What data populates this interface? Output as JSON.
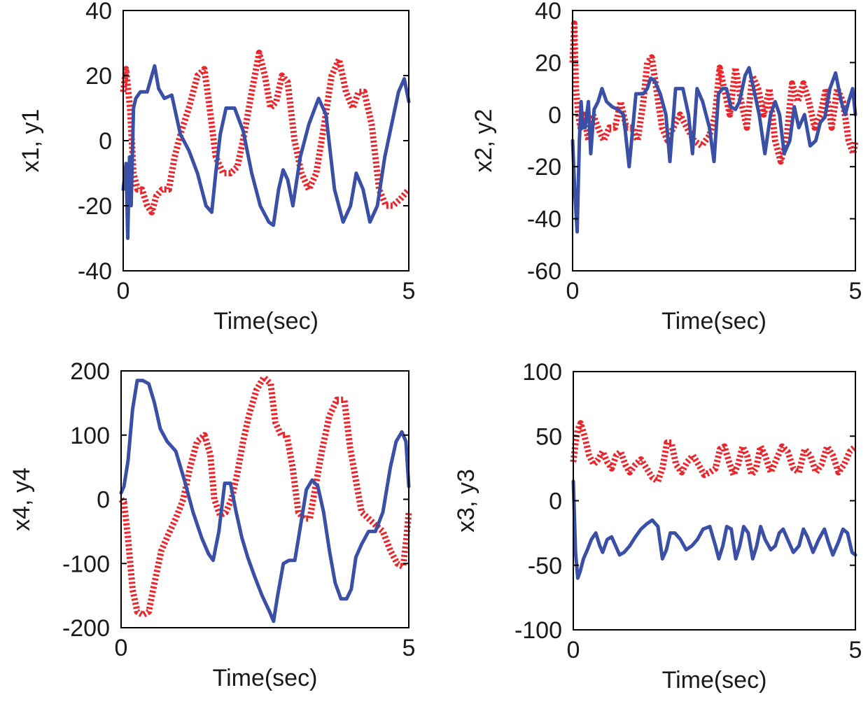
{
  "colors": {
    "blue": "#3a50a6",
    "red": "#e8262b",
    "axis": "#000000"
  },
  "chart_data": [
    {
      "id": "x1y1",
      "type": "line",
      "title": "",
      "xlabel": "Time(sec)",
      "ylabel": "x1, y1",
      "xlim": [
        0,
        5
      ],
      "ylim": [
        -40,
        40
      ],
      "xticks": [
        0,
        5
      ],
      "yticks": [
        -40,
        -20,
        0,
        20,
        40
      ],
      "series": [
        {
          "name": "x1",
          "color": "blue",
          "style": "solid",
          "x": [
            0,
            0.05,
            0.08,
            0.11,
            0.14,
            0.18,
            0.22,
            0.3,
            0.42,
            0.55,
            0.62,
            0.72,
            0.85,
            1.0,
            1.15,
            1.3,
            1.45,
            1.55,
            1.62,
            1.7,
            1.8,
            1.95,
            2.1,
            2.25,
            2.4,
            2.55,
            2.63,
            2.72,
            2.8,
            2.88,
            2.97,
            3.1,
            3.25,
            3.42,
            3.55,
            3.7,
            3.85,
            3.98,
            4.08,
            4.2,
            4.32,
            4.45,
            4.58,
            4.7,
            4.82,
            4.92,
            5.0
          ],
          "y": [
            -15,
            -7,
            -30,
            -5,
            -20,
            10,
            13,
            15,
            15,
            23,
            16,
            13,
            14,
            2,
            -3,
            -10,
            -20,
            -22,
            -10,
            2,
            10,
            10,
            3,
            -10,
            -20,
            -25,
            -26,
            -15,
            -9,
            -12,
            -20,
            -5,
            5,
            13,
            8,
            -15,
            -25,
            -20,
            -10,
            -15,
            -25,
            -20,
            -5,
            5,
            15,
            19,
            12
          ]
        },
        {
          "name": "y1",
          "color": "red",
          "style": "dotted",
          "x": [
            0,
            0.05,
            0.12,
            0.18,
            0.25,
            0.33,
            0.42,
            0.5,
            0.58,
            0.68,
            0.8,
            0.9,
            1.02,
            1.15,
            1.3,
            1.42,
            1.5,
            1.62,
            1.75,
            1.88,
            2.0,
            2.12,
            2.25,
            2.38,
            2.48,
            2.58,
            2.68,
            2.78,
            2.88,
            3.0,
            3.12,
            3.25,
            3.38,
            3.52,
            3.65,
            3.78,
            3.9,
            4.02,
            4.12,
            4.22,
            4.35,
            4.48,
            4.6,
            4.72,
            4.85,
            5.0
          ],
          "y": [
            15,
            22,
            10,
            -10,
            -15,
            -15,
            -20,
            -22,
            -17,
            -15,
            -15,
            -5,
            3,
            10,
            20,
            22,
            12,
            -5,
            -10,
            -10,
            -8,
            2,
            15,
            27,
            20,
            10,
            12,
            20,
            18,
            0,
            -10,
            -15,
            -10,
            5,
            20,
            25,
            15,
            10,
            15,
            15,
            5,
            -15,
            -20,
            -20,
            -18,
            -15
          ]
        }
      ]
    },
    {
      "id": "x2y2",
      "type": "line",
      "title": "",
      "xlabel": "Time(sec)",
      "ylabel": "x2, y2",
      "xlim": [
        0,
        5
      ],
      "ylim": [
        -60,
        40
      ],
      "xticks": [
        0,
        5
      ],
      "yticks": [
        -60,
        -40,
        -20,
        0,
        20,
        40
      ],
      "series": [
        {
          "name": "x2",
          "color": "blue",
          "style": "solid",
          "x": [
            0,
            0.04,
            0.08,
            0.12,
            0.15,
            0.18,
            0.22,
            0.28,
            0.32,
            0.38,
            0.45,
            0.52,
            0.6,
            0.7,
            0.8,
            0.9,
            1.0,
            1.12,
            1.25,
            1.32,
            1.38,
            1.45,
            1.55,
            1.65,
            1.72,
            1.82,
            1.95,
            2.05,
            2.12,
            2.2,
            2.3,
            2.42,
            2.5,
            2.58,
            2.65,
            2.72,
            2.8,
            2.88,
            2.95,
            3.05,
            3.12,
            3.2,
            3.3,
            3.4,
            3.5,
            3.58,
            3.66,
            3.74,
            3.84,
            3.92,
            4.0,
            4.1,
            4.2,
            4.3,
            4.38,
            4.46,
            4.55,
            4.65,
            4.75,
            4.82,
            4.88,
            4.95,
            5.0
          ],
          "y": [
            -10,
            -30,
            -45,
            -10,
            5,
            -5,
            -5,
            5,
            -15,
            2,
            5,
            10,
            5,
            3,
            2,
            0,
            -20,
            8,
            8,
            10,
            14,
            13,
            8,
            0,
            -18,
            10,
            10,
            0,
            -15,
            10,
            5,
            -5,
            -18,
            8,
            10,
            10,
            3,
            2,
            5,
            15,
            18,
            10,
            0,
            -15,
            0,
            5,
            0,
            -15,
            -10,
            3,
            -5,
            0,
            -12,
            -10,
            -3,
            -1,
            10,
            16,
            5,
            0,
            5,
            10,
            0
          ]
        },
        {
          "name": "y2",
          "color": "red",
          "style": "dotted",
          "x": [
            0,
            0.03,
            0.06,
            0.1,
            0.14,
            0.2,
            0.28,
            0.36,
            0.45,
            0.55,
            0.65,
            0.75,
            0.85,
            0.95,
            1.05,
            1.15,
            1.25,
            1.32,
            1.4,
            1.48,
            1.58,
            1.68,
            1.78,
            1.9,
            2.02,
            2.15,
            2.28,
            2.42,
            2.52,
            2.6,
            2.68,
            2.78,
            2.88,
            2.98,
            3.08,
            3.18,
            3.28,
            3.38,
            3.48,
            3.58,
            3.68,
            3.78,
            3.88,
            3.98,
            4.08,
            4.18,
            4.28,
            4.38,
            4.48,
            4.58,
            4.68,
            4.78,
            4.88,
            4.96,
            5.0
          ],
          "y": [
            20,
            35,
            10,
            0,
            -5,
            0,
            -10,
            0,
            -5,
            -10,
            -5,
            -5,
            5,
            -5,
            -5,
            -10,
            5,
            20,
            22,
            10,
            -5,
            -10,
            -5,
            0,
            -5,
            -10,
            -12,
            -8,
            0,
            18,
            10,
            0,
            18,
            5,
            -5,
            15,
            10,
            0,
            10,
            -10,
            -18,
            -10,
            12,
            5,
            12,
            5,
            -5,
            0,
            10,
            -5,
            10,
            5,
            -10,
            -15,
            -10
          ]
        }
      ]
    },
    {
      "id": "x4y4",
      "type": "line",
      "title": "",
      "xlabel": "Time(sec)",
      "ylabel": "x4, y4",
      "xlim": [
        0,
        5
      ],
      "ylim": [
        -200,
        200
      ],
      "xticks": [
        0,
        5
      ],
      "yticks": [
        -200,
        -100,
        0,
        100,
        200
      ],
      "series": [
        {
          "name": "x4",
          "color": "blue",
          "style": "solid",
          "x": [
            0,
            0.05,
            0.12,
            0.2,
            0.28,
            0.38,
            0.48,
            0.58,
            0.68,
            0.8,
            0.95,
            1.1,
            1.25,
            1.4,
            1.52,
            1.6,
            1.7,
            1.8,
            1.9,
            2.0,
            2.1,
            2.2,
            2.32,
            2.45,
            2.58,
            2.65,
            2.72,
            2.82,
            2.92,
            3.02,
            3.12,
            3.22,
            3.32,
            3.42,
            3.52,
            3.62,
            3.72,
            3.82,
            3.92,
            4.0,
            4.08,
            4.18,
            4.3,
            4.42,
            4.55,
            4.68,
            4.78,
            4.88,
            4.95,
            5.0
          ],
          "y": [
            10,
            20,
            60,
            140,
            185,
            185,
            180,
            150,
            110,
            90,
            75,
            30,
            -20,
            -60,
            -85,
            -95,
            -50,
            25,
            25,
            -20,
            -60,
            -90,
            -120,
            -150,
            -175,
            -190,
            -150,
            -100,
            -95,
            -95,
            -40,
            15,
            30,
            20,
            -20,
            -80,
            -130,
            -155,
            -155,
            -140,
            -90,
            -70,
            -50,
            -50,
            -20,
            50,
            90,
            105,
            90,
            20
          ]
        },
        {
          "name": "y4",
          "color": "red",
          "style": "dotted",
          "x": [
            0,
            0.05,
            0.12,
            0.2,
            0.28,
            0.38,
            0.48,
            0.58,
            0.7,
            0.82,
            0.95,
            1.08,
            1.2,
            1.32,
            1.45,
            1.55,
            1.62,
            1.72,
            1.82,
            1.92,
            2.02,
            2.12,
            2.22,
            2.35,
            2.48,
            2.6,
            2.68,
            2.78,
            2.88,
            2.98,
            3.08,
            3.18,
            3.28,
            3.38,
            3.5,
            3.62,
            3.75,
            3.88,
            3.98,
            4.08,
            4.18,
            4.3,
            4.42,
            4.55,
            4.68,
            4.8,
            4.9,
            4.96,
            5.0
          ],
          "y": [
            0,
            -5,
            -60,
            -140,
            -175,
            -180,
            -175,
            -130,
            -80,
            -55,
            -30,
            0,
            50,
            90,
            100,
            70,
            0,
            -25,
            -20,
            0,
            40,
            90,
            130,
            170,
            190,
            180,
            120,
            100,
            100,
            50,
            -20,
            -30,
            -30,
            20,
            80,
            130,
            155,
            155,
            80,
            30,
            -20,
            -30,
            -40,
            -50,
            -80,
            -100,
            -105,
            -60,
            -20
          ]
        }
      ]
    },
    {
      "id": "x3y3",
      "type": "line",
      "title": "",
      "xlabel": "Time(sec)",
      "ylabel": "x3, y3",
      "xlim": [
        0,
        5
      ],
      "ylim": [
        -100,
        100
      ],
      "xticks": [
        0,
        5
      ],
      "yticks": [
        -100,
        -50,
        0,
        50,
        100
      ],
      "series": [
        {
          "name": "x3",
          "color": "blue",
          "style": "solid",
          "x": [
            0,
            0.04,
            0.08,
            0.12,
            0.18,
            0.25,
            0.32,
            0.4,
            0.47,
            0.52,
            0.6,
            0.68,
            0.75,
            0.82,
            0.9,
            1.0,
            1.1,
            1.2,
            1.3,
            1.4,
            1.5,
            1.58,
            1.65,
            1.72,
            1.8,
            1.9,
            2.0,
            2.1,
            2.2,
            2.3,
            2.42,
            2.52,
            2.58,
            2.65,
            2.72,
            2.8,
            2.88,
            2.95,
            3.02,
            3.1,
            3.18,
            3.25,
            3.32,
            3.4,
            3.5,
            3.58,
            3.65,
            3.72,
            3.8,
            3.9,
            4.0,
            4.08,
            4.15,
            4.25,
            4.35,
            4.45,
            4.52,
            4.6,
            4.7,
            4.78,
            4.86,
            4.94,
            5.0
          ],
          "y": [
            15,
            -40,
            -60,
            -55,
            -45,
            -38,
            -30,
            -25,
            -35,
            -40,
            -30,
            -28,
            -35,
            -42,
            -40,
            -35,
            -28,
            -22,
            -18,
            -15,
            -20,
            -45,
            -38,
            -25,
            -25,
            -30,
            -38,
            -35,
            -30,
            -22,
            -20,
            -35,
            -45,
            -35,
            -20,
            -22,
            -45,
            -35,
            -20,
            -25,
            -45,
            -35,
            -20,
            -30,
            -38,
            -35,
            -25,
            -22,
            -30,
            -40,
            -35,
            -22,
            -28,
            -40,
            -30,
            -22,
            -32,
            -42,
            -32,
            -22,
            -25,
            -40,
            -42
          ]
        },
        {
          "name": "y3",
          "color": "red",
          "style": "dotted",
          "x": [
            0,
            0.04,
            0.08,
            0.13,
            0.2,
            0.28,
            0.36,
            0.44,
            0.52,
            0.6,
            0.68,
            0.76,
            0.84,
            0.92,
            1.0,
            1.1,
            1.2,
            1.3,
            1.4,
            1.5,
            1.58,
            1.66,
            1.74,
            1.82,
            1.92,
            2.02,
            2.12,
            2.22,
            2.32,
            2.42,
            2.52,
            2.6,
            2.68,
            2.76,
            2.84,
            2.92,
            3.0,
            3.08,
            3.16,
            3.24,
            3.32,
            3.4,
            3.5,
            3.6,
            3.7,
            3.8,
            3.9,
            4.0,
            4.1,
            4.2,
            4.3,
            4.4,
            4.5,
            4.6,
            4.7,
            4.8,
            4.9,
            5.0
          ],
          "y": [
            30,
            45,
            55,
            60,
            50,
            35,
            28,
            32,
            38,
            30,
            25,
            35,
            38,
            28,
            22,
            28,
            32,
            25,
            18,
            15,
            25,
            45,
            45,
            28,
            22,
            30,
            35,
            28,
            20,
            22,
            25,
            40,
            42,
            30,
            20,
            28,
            42,
            35,
            20,
            25,
            42,
            35,
            22,
            32,
            42,
            38,
            25,
            22,
            40,
            35,
            22,
            28,
            42,
            35,
            22,
            28,
            38,
            42
          ]
        }
      ]
    }
  ]
}
